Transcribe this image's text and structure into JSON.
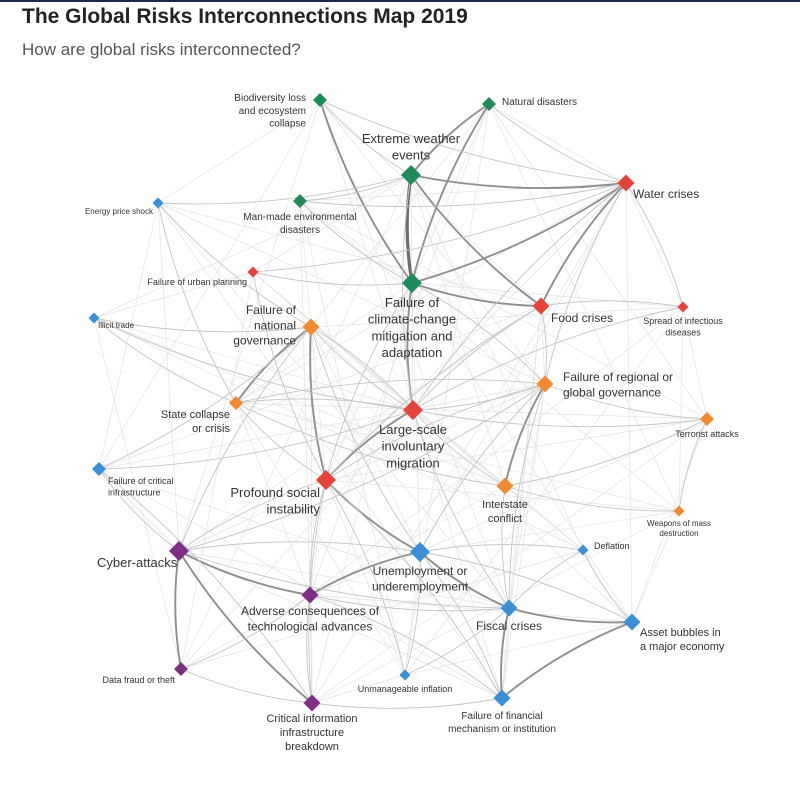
{
  "title": "The Global Risks Interconnections Map 2019",
  "subtitle": "How are global risks interconnected?",
  "colors": {
    "environmental": "#1f8a5a",
    "societal": "#e5433a",
    "geopolitical": "#ee8a30",
    "economic": "#3a8fd6",
    "technological": "#7e2e84",
    "edge": "#b0b0b0"
  },
  "nodes": [
    {
      "id": "biodiversity",
      "label": [
        "Biodiversity loss",
        "and ecosystem",
        "collapse"
      ],
      "category": "environmental",
      "size": "small"
    },
    {
      "id": "natural",
      "label": [
        "Natural disasters"
      ],
      "category": "environmental",
      "size": "small"
    },
    {
      "id": "extreme",
      "label": [
        "Extreme weather",
        "events"
      ],
      "category": "environmental",
      "size": "large"
    },
    {
      "id": "water",
      "label": [
        "Water crises"
      ],
      "category": "societal",
      "size": "medium"
    },
    {
      "id": "energy",
      "label": [
        "Energy price shock"
      ],
      "category": "economic",
      "size": "tiny"
    },
    {
      "id": "manmade",
      "label": [
        "Man-made environmental",
        "disasters"
      ],
      "category": "environmental",
      "size": "small"
    },
    {
      "id": "urban",
      "label": [
        "Failure of urban planning"
      ],
      "category": "societal",
      "size": "tiny"
    },
    {
      "id": "climate",
      "label": [
        "Failure of",
        "climate-change",
        "mitigation and",
        "adaptation"
      ],
      "category": "environmental",
      "size": "large"
    },
    {
      "id": "food",
      "label": [
        "Food crises"
      ],
      "category": "societal",
      "size": "medium"
    },
    {
      "id": "infectious",
      "label": [
        "Spread of infectious",
        "diseases"
      ],
      "category": "societal",
      "size": "tiny"
    },
    {
      "id": "illicit",
      "label": [
        "Illicit trade"
      ],
      "category": "economic",
      "size": "tiny"
    },
    {
      "id": "national",
      "label": [
        "Failure of",
        "national",
        "governance"
      ],
      "category": "geopolitical",
      "size": "medium"
    },
    {
      "id": "regional",
      "label": [
        "Failure of regional or",
        "global governance"
      ],
      "category": "geopolitical",
      "size": "medium"
    },
    {
      "id": "state",
      "label": [
        "State collapse",
        "or crisis"
      ],
      "category": "geopolitical",
      "size": "small"
    },
    {
      "id": "migration",
      "label": [
        "Large-scale",
        "involuntary",
        "migration"
      ],
      "category": "societal",
      "size": "large"
    },
    {
      "id": "terrorist",
      "label": [
        "Terrorist attacks"
      ],
      "category": "geopolitical",
      "size": "small"
    },
    {
      "id": "infrastructure",
      "label": [
        "Failure of critical",
        "infrastructure"
      ],
      "category": "economic",
      "size": "small"
    },
    {
      "id": "social",
      "label": [
        "Profound social",
        "instability"
      ],
      "category": "societal",
      "size": "large"
    },
    {
      "id": "interstate",
      "label": [
        "Interstate",
        "conflict"
      ],
      "category": "geopolitical",
      "size": "medium"
    },
    {
      "id": "wmd",
      "label": [
        "Weapons of mass",
        "destruction"
      ],
      "category": "geopolitical",
      "size": "tiny"
    },
    {
      "id": "cyber",
      "label": [
        "Cyber-attacks"
      ],
      "category": "technological",
      "size": "large"
    },
    {
      "id": "unemployment",
      "label": [
        "Unemployment or",
        "underemployment"
      ],
      "category": "economic",
      "size": "large"
    },
    {
      "id": "deflation",
      "label": [
        "Deflation"
      ],
      "category": "economic",
      "size": "tiny"
    },
    {
      "id": "adverse",
      "label": [
        "Adverse consequences of",
        "technological advances"
      ],
      "category": "technological",
      "size": "medium"
    },
    {
      "id": "fiscal",
      "label": [
        "Fiscal crises"
      ],
      "category": "economic",
      "size": "medium"
    },
    {
      "id": "asset",
      "label": [
        "Asset bubbles in",
        "a major economy"
      ],
      "category": "economic",
      "size": "medium"
    },
    {
      "id": "datafraud",
      "label": [
        "Data fraud or theft"
      ],
      "category": "technological",
      "size": "small"
    },
    {
      "id": "inflation",
      "label": [
        "Unmanageable inflation"
      ],
      "category": "economic",
      "size": "tiny"
    },
    {
      "id": "financial",
      "label": [
        "Failure of financial",
        "mechanism or institution"
      ],
      "category": "economic",
      "size": "medium"
    },
    {
      "id": "cii",
      "label": [
        "Critical information",
        "infrastructure",
        "breakdown"
      ],
      "category": "technological",
      "size": "medium"
    }
  ],
  "edges": [
    {
      "from": "extreme",
      "to": "climate",
      "weight": 3
    },
    {
      "from": "climate",
      "to": "water",
      "weight": 2
    },
    {
      "from": "climate",
      "to": "food",
      "weight": 2
    },
    {
      "from": "extreme",
      "to": "food",
      "weight": 2
    },
    {
      "from": "extreme",
      "to": "water",
      "weight": 2
    },
    {
      "from": "water",
      "to": "food",
      "weight": 2
    },
    {
      "from": "biodiversity",
      "to": "climate",
      "weight": 2
    },
    {
      "from": "biodiversity",
      "to": "extreme",
      "weight": 1
    },
    {
      "from": "natural",
      "to": "extreme",
      "weight": 2
    },
    {
      "from": "natural",
      "to": "climate",
      "weight": 2
    },
    {
      "from": "manmade",
      "to": "extreme",
      "weight": 1
    },
    {
      "from": "manmade",
      "to": "water",
      "weight": 1
    },
    {
      "from": "manmade",
      "to": "climate",
      "weight": 1
    },
    {
      "from": "water",
      "to": "migration",
      "weight": 1
    },
    {
      "from": "food",
      "to": "migration",
      "weight": 1
    },
    {
      "from": "climate",
      "to": "migration",
      "weight": 2
    },
    {
      "from": "migration",
      "to": "social",
      "weight": 2
    },
    {
      "from": "migration",
      "to": "state",
      "weight": 1
    },
    {
      "from": "migration",
      "to": "regional",
      "weight": 1
    },
    {
      "from": "migration",
      "to": "interstate",
      "weight": 1
    },
    {
      "from": "migration",
      "to": "national",
      "weight": 1
    },
    {
      "from": "national",
      "to": "social",
      "weight": 2
    },
    {
      "from": "national",
      "to": "state",
      "weight": 2
    },
    {
      "from": "national",
      "to": "unemployment",
      "weight": 1
    },
    {
      "from": "regional",
      "to": "interstate",
      "weight": 2
    },
    {
      "from": "regional",
      "to": "state",
      "weight": 1
    },
    {
      "from": "regional",
      "to": "social",
      "weight": 1
    },
    {
      "from": "state",
      "to": "social",
      "weight": 1
    },
    {
      "from": "social",
      "to": "unemployment",
      "weight": 2
    },
    {
      "from": "social",
      "to": "cyber",
      "weight": 1
    },
    {
      "from": "unemployment",
      "to": "adverse",
      "weight": 2
    },
    {
      "from": "unemployment",
      "to": "fiscal",
      "weight": 2
    },
    {
      "from": "unemployment",
      "to": "cyber",
      "weight": 1
    },
    {
      "from": "cyber",
      "to": "cii",
      "weight": 2
    },
    {
      "from": "cyber",
      "to": "datafraud",
      "weight": 2
    },
    {
      "from": "cyber",
      "to": "adverse",
      "weight": 2
    },
    {
      "from": "adverse",
      "to": "cii",
      "weight": 1
    },
    {
      "from": "fiscal",
      "to": "asset",
      "weight": 2
    },
    {
      "from": "fiscal",
      "to": "financial",
      "weight": 2
    },
    {
      "from": "asset",
      "to": "financial",
      "weight": 2
    },
    {
      "from": "deflation",
      "to": "asset",
      "weight": 1
    },
    {
      "from": "deflation",
      "to": "fiscal",
      "weight": 1
    },
    {
      "from": "interstate",
      "to": "fiscal",
      "weight": 1
    },
    {
      "from": "interstate",
      "to": "terrorist",
      "weight": 1
    },
    {
      "from": "terrorist",
      "to": "wmd",
      "weight": 1
    },
    {
      "from": "interstate",
      "to": "wmd",
      "weight": 1
    },
    {
      "from": "regional",
      "to": "terrorist",
      "weight": 1
    },
    {
      "from": "regional",
      "to": "food",
      "weight": 1
    },
    {
      "from": "regional",
      "to": "climate",
      "weight": 1
    },
    {
      "from": "infectious",
      "to": "water",
      "weight": 1
    },
    {
      "from": "infectious",
      "to": "food",
      "weight": 1
    },
    {
      "from": "urban",
      "to": "climate",
      "weight": 1
    },
    {
      "from": "urban",
      "to": "water",
      "weight": 1
    },
    {
      "from": "energy",
      "to": "state",
      "weight": 1
    },
    {
      "from": "energy",
      "to": "national",
      "weight": 1
    },
    {
      "from": "illicit",
      "to": "national",
      "weight": 1
    },
    {
      "from": "illicit",
      "to": "state",
      "weight": 1
    },
    {
      "from": "infrastructure",
      "to": "cyber",
      "weight": 1
    },
    {
      "from": "infrastructure",
      "to": "national",
      "weight": 1
    },
    {
      "from": "infrastructure",
      "to": "migration",
      "weight": 1
    },
    {
      "from": "financial",
      "to": "unemployment",
      "weight": 1
    },
    {
      "from": "financial",
      "to": "social",
      "weight": 1
    },
    {
      "from": "inflation",
      "to": "fiscal",
      "weight": 1
    },
    {
      "from": "inflation",
      "to": "social",
      "weight": 1
    },
    {
      "from": "datafraud",
      "to": "cii",
      "weight": 1
    },
    {
      "from": "cii",
      "to": "infrastructure",
      "weight": 1
    },
    {
      "from": "migration",
      "to": "fiscal",
      "weight": 1
    },
    {
      "from": "national",
      "to": "migration",
      "weight": 1
    },
    {
      "from": "natural",
      "to": "water",
      "weight": 1
    },
    {
      "from": "biodiversity",
      "to": "water",
      "weight": 1
    },
    {
      "from": "social",
      "to": "adverse",
      "weight": 1
    },
    {
      "from": "social",
      "to": "cii",
      "weight": 1
    },
    {
      "from": "adverse",
      "to": "fiscal",
      "weight": 1
    },
    {
      "from": "regional",
      "to": "unemployment",
      "weight": 1
    },
    {
      "from": "regional",
      "to": "fiscal",
      "weight": 1
    },
    {
      "from": "cyber",
      "to": "fiscal",
      "weight": 1
    },
    {
      "from": "cyber",
      "to": "regional",
      "weight": 1
    },
    {
      "from": "asset",
      "to": "unemployment",
      "weight": 1
    },
    {
      "from": "deflation",
      "to": "unemployment",
      "weight": 1
    },
    {
      "from": "extreme",
      "to": "migration",
      "weight": 1
    },
    {
      "from": "water",
      "to": "regional",
      "weight": 1
    },
    {
      "from": "food",
      "to": "social",
      "weight": 1
    },
    {
      "from": "climate",
      "to": "social",
      "weight": 1
    },
    {
      "from": "national",
      "to": "cyber",
      "weight": 1
    },
    {
      "from": "state",
      "to": "interstate",
      "weight": 1
    },
    {
      "from": "migration",
      "to": "terrorist",
      "weight": 1
    },
    {
      "from": "financial",
      "to": "adverse",
      "weight": 1
    },
    {
      "from": "inflation",
      "to": "unemployment",
      "weight": 1
    },
    {
      "from": "urban",
      "to": "social",
      "weight": 1
    },
    {
      "from": "infectious",
      "to": "migration",
      "weight": 1
    },
    {
      "from": "energy",
      "to": "extreme",
      "weight": 1
    },
    {
      "from": "illicit",
      "to": "migration",
      "weight": 1
    },
    {
      "from": "cii",
      "to": "financial",
      "weight": 1
    },
    {
      "from": "datafraud",
      "to": "adverse",
      "weight": 1
    }
  ]
}
